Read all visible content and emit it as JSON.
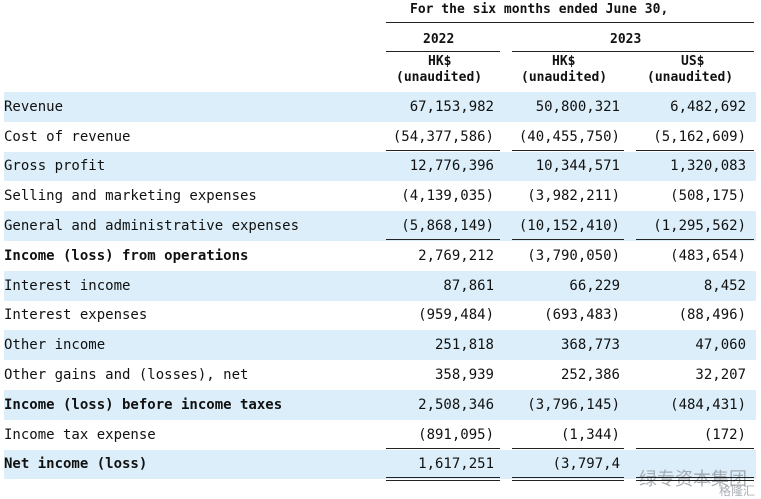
{
  "header": {
    "period": "For the six months ended June 30,",
    "year1": "2022",
    "year2": "2023",
    "col1_currency": "HK$",
    "col1_note": "(unaudited)",
    "col2_currency": "HK$",
    "col2_note": "(unaudited)",
    "col3_currency": "US$",
    "col3_note": "(unaudited)"
  },
  "rows": [
    {
      "label": "Revenue",
      "v1": "67,153,982",
      "v2": "50,800,321",
      "v3": "6,482,692",
      "shaded": true,
      "bold": false
    },
    {
      "label": "Cost of revenue",
      "v1": "(54,377,586)",
      "v2": "(40,455,750)",
      "v3": "(5,162,609)",
      "shaded": false,
      "bold": false
    },
    {
      "label": "Gross profit",
      "v1": "12,776,396",
      "v2": "10,344,571",
      "v3": "1,320,083",
      "shaded": true,
      "bold": false
    },
    {
      "label": "Selling and marketing expenses",
      "v1": "(4,139,035)",
      "v2": "(3,982,211)",
      "v3": "(508,175)",
      "shaded": false,
      "bold": false
    },
    {
      "label": "General and administrative expenses",
      "v1": "(5,868,149)",
      "v2": "(10,152,410)",
      "v3": "(1,295,562)",
      "shaded": true,
      "bold": false
    },
    {
      "label": "Income (loss) from operations",
      "v1": "2,769,212",
      "v2": "(3,790,050)",
      "v3": "(483,654)",
      "shaded": false,
      "bold": true
    },
    {
      "label": "Interest income",
      "v1": "87,861",
      "v2": "66,229",
      "v3": "8,452",
      "shaded": true,
      "bold": false
    },
    {
      "label": "Interest expenses",
      "v1": "(959,484)",
      "v2": "(693,483)",
      "v3": "(88,496)",
      "shaded": false,
      "bold": false
    },
    {
      "label": "Other income",
      "v1": "251,818",
      "v2": "368,773",
      "v3": "47,060",
      "shaded": true,
      "bold": false
    },
    {
      "label": "Other gains and (losses), net",
      "v1": "358,939",
      "v2": "252,386",
      "v3": "32,207",
      "shaded": false,
      "bold": false
    },
    {
      "label": "Income (loss) before income taxes",
      "v1": "2,508,346",
      "v2": "(3,796,145)",
      "v3": "(484,431)",
      "shaded": true,
      "bold": true
    },
    {
      "label": "Income tax expense",
      "v1": "(891,095)",
      "v2": "(1,344)",
      "v3": "(172)",
      "shaded": false,
      "bold": false
    },
    {
      "label": "Net income (loss)",
      "v1": "1,617,251",
      "v2": "(3,797,4",
      "v3": "",
      "shaded": true,
      "bold": true
    }
  ],
  "watermark": {
    "text": "绿专资本集团",
    "sub": "格隆汇"
  }
}
